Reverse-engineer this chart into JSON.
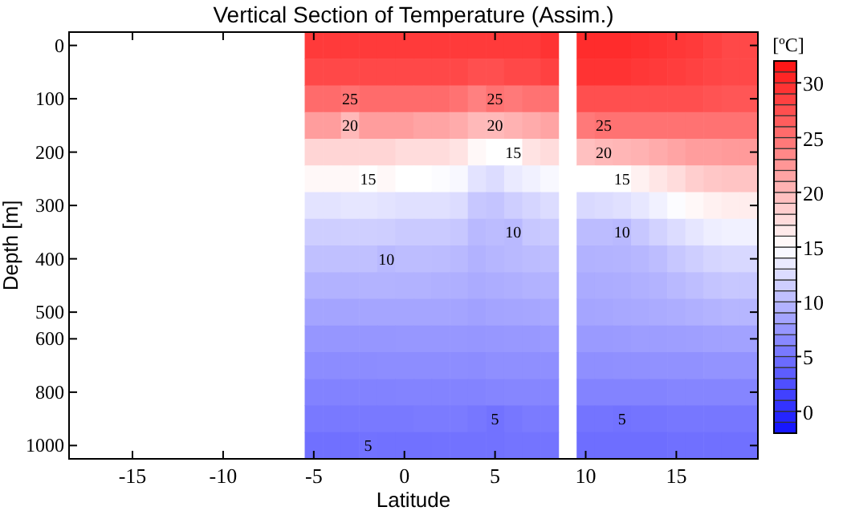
{
  "chart_data": {
    "type": "heatmap",
    "title": "Vertical Section of Temperature (Assim.)",
    "xlabel": "Latitude",
    "ylabel": "Depth [m]",
    "clabel": "[ºC]",
    "categories": [
      null,
      null,
      null,
      "-15",
      null,
      null,
      null,
      null,
      "-10",
      null,
      null,
      null,
      null,
      "-5",
      null,
      null,
      null,
      null,
      "0",
      null,
      null,
      null,
      null,
      "5",
      null,
      null,
      null,
      null,
      "10",
      null,
      null,
      null,
      null,
      "15",
      null,
      null,
      null,
      null
    ],
    "y_categories": [
      "0",
      null,
      "100",
      null,
      "200",
      null,
      "300",
      null,
      "400",
      null,
      "500",
      "600",
      null,
      "800",
      null,
      "1000"
    ],
    "clim": [
      -2,
      32
    ],
    "cticks": [
      0,
      5,
      10,
      15,
      20,
      25,
      30
    ],
    "colors": [
      "#1010ff",
      "#ffffff",
      "#ff1010"
    ],
    "cells": [
      [
        null,
        null,
        null,
        null,
        null,
        null,
        null,
        null,
        null,
        null,
        null,
        null,
        null,
        29,
        29,
        29,
        29,
        29,
        29,
        29,
        29,
        29,
        29,
        29,
        29,
        29,
        29.5,
        null,
        30,
        30,
        30,
        29.8,
        29.5,
        29.2,
        29,
        28.5,
        28,
        28
      ],
      [
        null,
        null,
        null,
        null,
        null,
        null,
        null,
        null,
        null,
        null,
        null,
        null,
        null,
        28,
        28,
        28,
        28,
        28,
        28,
        28,
        28,
        28,
        27.5,
        27.5,
        28,
        28,
        28.5,
        null,
        29.5,
        29.5,
        29.5,
        29.2,
        29,
        28.8,
        28.5,
        28.2,
        28,
        28
      ],
      [
        null,
        null,
        null,
        null,
        null,
        null,
        null,
        null,
        null,
        null,
        null,
        null,
        null,
        25.5,
        25.5,
        25,
        25.5,
        25.5,
        25.5,
        25.5,
        25.5,
        25,
        24,
        25,
        24.5,
        25,
        25,
        null,
        27.5,
        27.5,
        27.5,
        27.5,
        27.5,
        27.5,
        27.5,
        27.2,
        27,
        27
      ],
      [
        null,
        null,
        null,
        null,
        null,
        null,
        null,
        null,
        null,
        null,
        null,
        null,
        null,
        22,
        22,
        20,
        22,
        22,
        22,
        21.5,
        21.5,
        21,
        20,
        20,
        20.5,
        21,
        21.5,
        null,
        24.5,
        25,
        25,
        25,
        25,
        25,
        25,
        25,
        25,
        25
      ],
      [
        null,
        null,
        null,
        null,
        null,
        null,
        null,
        null,
        null,
        null,
        null,
        null,
        null,
        18,
        18,
        18,
        18,
        18,
        17.5,
        17.5,
        17.5,
        17,
        15.5,
        15,
        15,
        17,
        17.5,
        null,
        19.5,
        20,
        20.2,
        20.5,
        21,
        21.5,
        22,
        22,
        22.2,
        22.2
      ],
      [
        null,
        null,
        null,
        null,
        null,
        null,
        null,
        null,
        null,
        null,
        null,
        null,
        null,
        15.5,
        15.5,
        15.5,
        15,
        15.5,
        15,
        15,
        14.8,
        14.5,
        13,
        12.5,
        13.5,
        14,
        14.5,
        null,
        15,
        15,
        15,
        16,
        16.8,
        17.5,
        18.5,
        19,
        19.2,
        19.2
      ],
      [
        null,
        null,
        null,
        null,
        null,
        null,
        null,
        null,
        null,
        null,
        null,
        null,
        null,
        13,
        13,
        13.2,
        13.2,
        13,
        12.8,
        12.8,
        12.8,
        12.5,
        11,
        10.8,
        11.5,
        12,
        12.5,
        null,
        12.3,
        12.5,
        12.8,
        13.3,
        14,
        14.8,
        15.5,
        16,
        16.3,
        16.3
      ],
      [
        null,
        null,
        null,
        null,
        null,
        null,
        null,
        null,
        null,
        null,
        null,
        null,
        null,
        11.5,
        11.5,
        11.6,
        11.6,
        11.5,
        11.2,
        11.2,
        11.2,
        11,
        10,
        10.2,
        10,
        11,
        11.2,
        null,
        10.2,
        10.2,
        10,
        11,
        11.8,
        12.5,
        13.2,
        13.8,
        14,
        14
      ],
      [
        null,
        null,
        null,
        null,
        null,
        null,
        null,
        null,
        null,
        null,
        null,
        null,
        null,
        10.5,
        10.5,
        10.5,
        10.5,
        10,
        10.3,
        10.3,
        10.2,
        10,
        9.5,
        9.8,
        10,
        10.2,
        10.4,
        null,
        9.5,
        9.6,
        9.7,
        9.9,
        10.3,
        11,
        11.5,
        12,
        12.2,
        12.2
      ],
      [
        null,
        null,
        null,
        null,
        null,
        null,
        null,
        null,
        null,
        null,
        null,
        null,
        null,
        9.5,
        9.5,
        9.5,
        9.6,
        9.6,
        9.5,
        9.5,
        9.4,
        9.3,
        9,
        9.2,
        9.3,
        9.5,
        9.6,
        null,
        9,
        9.1,
        9.2,
        9.4,
        9.6,
        10,
        10.4,
        10.8,
        11,
        11
      ],
      [
        null,
        null,
        null,
        null,
        null,
        null,
        null,
        null,
        null,
        null,
        null,
        null,
        null,
        8.5,
        8.5,
        8.5,
        8.6,
        8.6,
        8.6,
        8.6,
        8.6,
        8.5,
        8.3,
        8.5,
        8.6,
        8.7,
        8.8,
        null,
        8.6,
        8.7,
        8.8,
        8.9,
        9,
        9.2,
        9.4,
        9.6,
        9.8,
        9.8
      ],
      [
        null,
        null,
        null,
        null,
        null,
        null,
        null,
        null,
        null,
        null,
        null,
        null,
        null,
        7.5,
        7.5,
        7.5,
        7.5,
        7.5,
        7.6,
        7.6,
        7.6,
        7.6,
        7.5,
        7.6,
        7.7,
        7.7,
        7.8,
        null,
        7.8,
        7.8,
        7.9,
        8,
        8,
        8.1,
        8.2,
        8.3,
        8.4,
        8.4
      ],
      [
        null,
        null,
        null,
        null,
        null,
        null,
        null,
        null,
        null,
        null,
        null,
        null,
        null,
        6.8,
        6.8,
        6.8,
        6.8,
        6.9,
        6.9,
        6.9,
        6.9,
        6.9,
        6.8,
        7,
        7,
        7,
        7,
        null,
        7,
        7,
        7.1,
        7.1,
        7.2,
        7.2,
        7.2,
        7.3,
        7.3,
        7.3
      ],
      [
        null,
        null,
        null,
        null,
        null,
        null,
        null,
        null,
        null,
        null,
        null,
        null,
        null,
        6.1,
        6.1,
        6.1,
        6.1,
        6.1,
        6.2,
        6.2,
        6.2,
        6.2,
        6.2,
        6.3,
        6.4,
        6.4,
        6.4,
        null,
        6.2,
        6.2,
        6.2,
        6.2,
        6.2,
        6.3,
        6.3,
        6.3,
        6.3,
        6.3
      ],
      [
        null,
        null,
        null,
        null,
        null,
        null,
        null,
        null,
        null,
        null,
        null,
        null,
        null,
        5.5,
        5.5,
        5.5,
        5.5,
        5.5,
        5.5,
        5.6,
        5.6,
        5.6,
        5.3,
        5,
        5.3,
        5.6,
        5.6,
        null,
        5.1,
        5.1,
        5,
        5.1,
        5.2,
        5.3,
        5.3,
        5.3,
        5.3,
        5.3
      ],
      [
        null,
        null,
        null,
        null,
        null,
        null,
        null,
        null,
        null,
        null,
        null,
        null,
        null,
        4.8,
        4.8,
        4.8,
        5,
        4.9,
        4.9,
        4.9,
        5,
        5,
        5,
        5,
        5.1,
        5.1,
        5.1,
        null,
        4.7,
        4.7,
        4.7,
        4.7,
        4.7,
        4.8,
        4.8,
        4.8,
        4.8,
        4.8
      ]
    ],
    "cell_labels": [
      [
        null,
        null,
        null,
        null,
        null,
        null,
        null,
        null,
        null,
        null,
        null,
        null,
        null,
        null,
        null,
        null,
        null,
        null,
        null,
        null,
        null,
        null,
        null,
        null,
        null,
        null,
        null,
        null,
        null,
        null,
        null,
        null,
        null,
        null,
        null,
        null,
        null,
        null
      ],
      [
        null,
        null,
        null,
        null,
        null,
        null,
        null,
        null,
        null,
        null,
        null,
        null,
        null,
        null,
        null,
        null,
        null,
        null,
        null,
        null,
        null,
        null,
        null,
        null,
        null,
        null,
        null,
        null,
        null,
        null,
        null,
        null,
        null,
        null,
        null,
        null,
        null,
        null
      ],
      [
        null,
        null,
        null,
        null,
        null,
        null,
        null,
        null,
        null,
        null,
        null,
        null,
        null,
        null,
        null,
        "25",
        null,
        null,
        null,
        null,
        null,
        null,
        null,
        "25",
        null,
        null,
        null,
        null,
        null,
        null,
        null,
        null,
        null,
        null,
        null,
        null,
        null,
        null
      ],
      [
        null,
        null,
        null,
        null,
        null,
        null,
        null,
        null,
        null,
        null,
        null,
        null,
        null,
        null,
        null,
        "20",
        null,
        null,
        null,
        null,
        null,
        null,
        null,
        "20",
        null,
        null,
        null,
        null,
        null,
        "25",
        null,
        null,
        null,
        null,
        null,
        null,
        null,
        null
      ],
      [
        null,
        null,
        null,
        null,
        null,
        null,
        null,
        null,
        null,
        null,
        null,
        null,
        null,
        null,
        null,
        null,
        null,
        null,
        null,
        null,
        null,
        null,
        null,
        null,
        "15",
        null,
        null,
        null,
        null,
        "20",
        null,
        null,
        null,
        null,
        null,
        null,
        null,
        null
      ],
      [
        null,
        null,
        null,
        null,
        null,
        null,
        null,
        null,
        null,
        null,
        null,
        null,
        null,
        null,
        null,
        null,
        "15",
        null,
        null,
        null,
        null,
        null,
        null,
        null,
        null,
        null,
        null,
        null,
        null,
        null,
        "15",
        null,
        null,
        null,
        null,
        null,
        null,
        null
      ],
      [
        null,
        null,
        null,
        null,
        null,
        null,
        null,
        null,
        null,
        null,
        null,
        null,
        null,
        null,
        null,
        null,
        null,
        null,
        null,
        null,
        null,
        null,
        null,
        null,
        null,
        null,
        null,
        null,
        null,
        null,
        null,
        null,
        null,
        null,
        null,
        null,
        null,
        null
      ],
      [
        null,
        null,
        null,
        null,
        null,
        null,
        null,
        null,
        null,
        null,
        null,
        null,
        null,
        null,
        null,
        null,
        null,
        null,
        null,
        null,
        null,
        null,
        null,
        null,
        "10",
        null,
        null,
        null,
        null,
        null,
        "10",
        null,
        null,
        null,
        null,
        null,
        null,
        null
      ],
      [
        null,
        null,
        null,
        null,
        null,
        null,
        null,
        null,
        null,
        null,
        null,
        null,
        null,
        null,
        null,
        null,
        null,
        "10",
        null,
        null,
        null,
        null,
        null,
        null,
        null,
        null,
        null,
        null,
        null,
        null,
        null,
        null,
        null,
        null,
        null,
        null,
        null,
        null
      ],
      [
        null,
        null,
        null,
        null,
        null,
        null,
        null,
        null,
        null,
        null,
        null,
        null,
        null,
        null,
        null,
        null,
        null,
        null,
        null,
        null,
        null,
        null,
        null,
        null,
        null,
        null,
        null,
        null,
        null,
        null,
        null,
        null,
        null,
        null,
        null,
        null,
        null,
        null
      ],
      [
        null,
        null,
        null,
        null,
        null,
        null,
        null,
        null,
        null,
        null,
        null,
        null,
        null,
        null,
        null,
        null,
        null,
        null,
        null,
        null,
        null,
        null,
        null,
        null,
        null,
        null,
        null,
        null,
        null,
        null,
        null,
        null,
        null,
        null,
        null,
        null,
        null,
        null
      ],
      [
        null,
        null,
        null,
        null,
        null,
        null,
        null,
        null,
        null,
        null,
        null,
        null,
        null,
        null,
        null,
        null,
        null,
        null,
        null,
        null,
        null,
        null,
        null,
        null,
        null,
        null,
        null,
        null,
        null,
        null,
        null,
        null,
        null,
        null,
        null,
        null,
        null,
        null
      ],
      [
        null,
        null,
        null,
        null,
        null,
        null,
        null,
        null,
        null,
        null,
        null,
        null,
        null,
        null,
        null,
        null,
        null,
        null,
        null,
        null,
        null,
        null,
        null,
        null,
        null,
        null,
        null,
        null,
        null,
        null,
        null,
        null,
        null,
        null,
        null,
        null,
        null,
        null
      ],
      [
        null,
        null,
        null,
        null,
        null,
        null,
        null,
        null,
        null,
        null,
        null,
        null,
        null,
        null,
        null,
        null,
        null,
        null,
        null,
        null,
        null,
        null,
        null,
        null,
        null,
        null,
        null,
        null,
        null,
        null,
        null,
        null,
        null,
        null,
        null,
        null,
        null,
        null
      ],
      [
        null,
        null,
        null,
        null,
        null,
        null,
        null,
        null,
        null,
        null,
        null,
        null,
        null,
        null,
        null,
        null,
        null,
        null,
        null,
        null,
        null,
        null,
        null,
        "5",
        null,
        null,
        null,
        null,
        null,
        null,
        "5",
        null,
        null,
        null,
        null,
        null,
        null,
        null
      ],
      [
        null,
        null,
        null,
        null,
        null,
        null,
        null,
        null,
        null,
        null,
        null,
        null,
        null,
        null,
        null,
        null,
        "5",
        null,
        null,
        null,
        null,
        null,
        null,
        null,
        null,
        null,
        null,
        null,
        null,
        null,
        null,
        null,
        null,
        null,
        null,
        null,
        null,
        null
      ]
    ]
  }
}
